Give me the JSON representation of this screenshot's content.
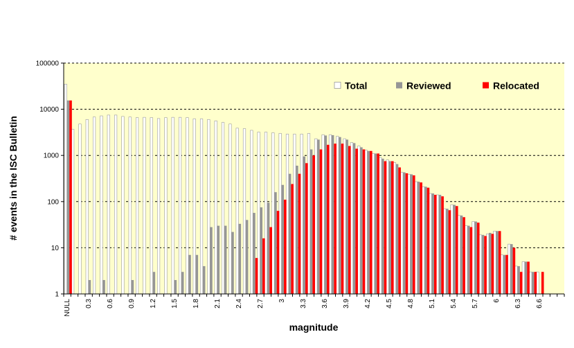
{
  "chart_data": {
    "type": "bar",
    "title": "",
    "xlabel": "magnitude",
    "ylabel": "# events in the ISC Bulletin",
    "yscale": "log",
    "ylim": [
      1,
      100000
    ],
    "y_ticks": [
      "1",
      "10",
      "100",
      "1000",
      "10000",
      "100000"
    ],
    "grid": "horizontal dashed",
    "legend_position": "top-right",
    "colors": {
      "plot_bg": "#FFFFCC",
      "Total": "#FFFFFF",
      "Reviewed": "#969696",
      "Relocated": "#FF0000"
    },
    "categories": [
      "NULL",
      "0.1",
      "0.2",
      "0.3",
      "0.4",
      "0.5",
      "0.6",
      "0.7",
      "0.8",
      "0.9",
      "1",
      "1.1",
      "1.2",
      "1.3",
      "1.4",
      "1.5",
      "1.6",
      "1.7",
      "1.8",
      "1.9",
      "2",
      "2.1",
      "2.2",
      "2.3",
      "2.4",
      "2.5",
      "2.6",
      "2.7",
      "2.8",
      "2.9",
      "3",
      "3.1",
      "3.2",
      "3.3",
      "3.4",
      "3.5",
      "3.6",
      "3.7",
      "3.8",
      "3.9",
      "4",
      "4.1",
      "4.2",
      "4.3",
      "4.4",
      "4.5",
      "4.6",
      "4.7",
      "4.8",
      "4.9",
      "5",
      "5.1",
      "5.2",
      "5.3",
      "5.4",
      "5.5",
      "5.6",
      "5.7",
      "5.8",
      "5.9",
      "6",
      "6.1",
      "6.2",
      "6.3",
      "6.4",
      "6.5",
      "6.6",
      "6.7",
      "6.8",
      "6.9"
    ],
    "x_tick_labels": [
      "NULL",
      "",
      "",
      "0.3",
      "",
      "",
      "0.6",
      "",
      "",
      "0.9",
      "",
      "",
      "1.2",
      "",
      "",
      "1.5",
      "",
      "",
      "1.8",
      "",
      "",
      "2.1",
      "",
      "",
      "2.4",
      "",
      "",
      "2.7",
      "",
      "",
      "3",
      "",
      "",
      "3.3",
      "",
      "",
      "3.6",
      "",
      "",
      "3.9",
      "",
      "",
      "4.2",
      "",
      "",
      "4.5",
      "",
      "",
      "4.8",
      "",
      "",
      "5.1",
      "",
      "",
      "5.4",
      "",
      "",
      "5.7",
      "",
      "",
      "6",
      "",
      "",
      "6.3",
      "",
      "",
      "6.6",
      "",
      "",
      ""
    ],
    "series": [
      {
        "name": "Total",
        "values": [
          35000,
          3700,
          4800,
          6000,
          6800,
          7200,
          7500,
          7500,
          7000,
          6800,
          6600,
          6700,
          6600,
          6300,
          6600,
          6700,
          6700,
          6600,
          6200,
          6200,
          6000,
          5600,
          5200,
          4800,
          3900,
          3800,
          3500,
          3200,
          3200,
          3100,
          3000,
          2900,
          2900,
          2900,
          3000,
          2300,
          2800,
          2800,
          2600,
          2300,
          1900,
          1600,
          1300,
          1100,
          900,
          800,
          700,
          430,
          390,
          270,
          210,
          150,
          140,
          70,
          85,
          50,
          30,
          37,
          19,
          20,
          23,
          7,
          12,
          4,
          5,
          3,
          3,
          0,
          0,
          0
        ]
      },
      {
        "name": "Reviewed",
        "values": [
          15500,
          0,
          0,
          2,
          0,
          2,
          0,
          0,
          0,
          2,
          0,
          0,
          3,
          0,
          0,
          2,
          3,
          7,
          7,
          4,
          28,
          30,
          30,
          22,
          33,
          40,
          57,
          75,
          95,
          160,
          230,
          400,
          600,
          950,
          1350,
          2200,
          2700,
          2750,
          2500,
          2200,
          1850,
          1500,
          1250,
          1100,
          850,
          750,
          650,
          430,
          390,
          270,
          210,
          150,
          140,
          70,
          85,
          50,
          30,
          37,
          19,
          21,
          23,
          7,
          12,
          4,
          5,
          3,
          0,
          0,
          0,
          0
        ]
      },
      {
        "name": "Relocated",
        "values": [
          15500,
          0,
          0,
          0,
          0,
          0,
          0,
          0,
          0,
          0,
          0,
          0,
          0,
          0,
          0,
          0,
          0,
          0,
          0,
          0,
          0,
          0,
          0,
          0,
          0,
          0,
          6,
          16,
          28,
          63,
          110,
          240,
          400,
          680,
          1000,
          1350,
          1700,
          1800,
          1800,
          1600,
          1400,
          1350,
          1250,
          1100,
          750,
          750,
          550,
          410,
          370,
          260,
          200,
          140,
          130,
          65,
          80,
          46,
          28,
          35,
          18,
          20,
          23,
          7,
          10,
          3,
          5,
          3,
          3,
          0,
          0,
          0
        ]
      }
    ]
  }
}
